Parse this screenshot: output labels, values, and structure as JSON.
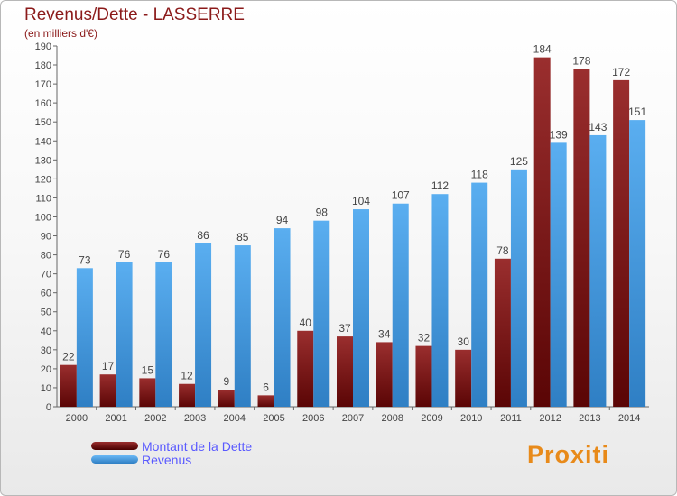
{
  "header": {
    "title": "Revenus/Dette - LASSERRE",
    "subtitle": "(en milliers d'€)"
  },
  "colors": {
    "dette": "#7a1515",
    "revenus": "#4a9fe0"
  },
  "chart_data": {
    "type": "bar",
    "title": "Revenus/Dette - LASSERRE",
    "ylabel": "(en milliers d'€)",
    "categories": [
      "2000",
      "2001",
      "2002",
      "2003",
      "2004",
      "2005",
      "2006",
      "2007",
      "2008",
      "2009",
      "2010",
      "2011",
      "2012",
      "2013",
      "2014"
    ],
    "series": [
      {
        "name": "Montant de la Dette",
        "values": [
          22,
          17,
          15,
          12,
          9,
          6,
          40,
          37,
          34,
          32,
          30,
          78,
          184,
          178,
          172
        ]
      },
      {
        "name": "Revenus",
        "values": [
          73,
          76,
          76,
          86,
          85,
          94,
          98,
          104,
          107,
          112,
          118,
          125,
          139,
          143,
          151
        ]
      }
    ],
    "ylim": [
      0,
      190
    ],
    "yticks": [
      0,
      10,
      20,
      30,
      40,
      50,
      60,
      70,
      80,
      90,
      100,
      110,
      120,
      130,
      140,
      150,
      160,
      170,
      180,
      190
    ],
    "grid": false,
    "legend": "bottom-left"
  },
  "legend": {
    "items": [
      {
        "label": "Montant de la Dette"
      },
      {
        "label": "Revenus"
      }
    ]
  },
  "logo": {
    "text": "Proxiti"
  }
}
